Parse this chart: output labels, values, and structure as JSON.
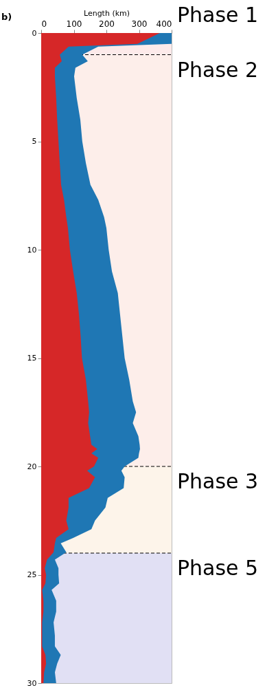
{
  "chart_data": {
    "type": "area",
    "orientation": "horizontal",
    "title": "b)",
    "xlabel": "Length (km)",
    "x": [
      0,
      0.5,
      0.63,
      1,
      1.3,
      1.6,
      2,
      3,
      4,
      5,
      6,
      7,
      7.7,
      8.5,
      9,
      10,
      11,
      12,
      13,
      14,
      15,
      16,
      17,
      17.5,
      18,
      18.6,
      19,
      19.2,
      19.4,
      19.6,
      20,
      20.2,
      20.5,
      21,
      21.45,
      21.9,
      22.5,
      22.9,
      23.3,
      23.55,
      23.96,
      24.3,
      24.7,
      25,
      25.4,
      25.7,
      26.2,
      26.7,
      27.2,
      27.8,
      28.3,
      28.7,
      29.1,
      29.5,
      30
    ],
    "series": [
      {
        "color": "#1f77b4",
        "values": [
          400,
          400,
          175,
          126,
          143,
          105,
          101,
          109,
          120,
          126,
          137,
          151,
          175,
          193,
          200,
          207,
          217,
          235,
          242,
          249,
          256,
          270,
          281,
          291,
          281,
          298,
          302,
          303,
          300,
          298,
          256,
          246,
          256,
          253,
          204,
          197,
          165,
          154,
          98,
          60,
          77,
          42,
          53,
          53,
          55,
          32,
          46,
          46,
          38,
          42,
          42,
          60,
          49,
          42,
          46
        ]
      },
      {
        "color": "#d62728",
        "values": [
          364,
          295,
          84,
          57,
          63,
          42,
          42,
          46,
          49,
          53,
          57,
          61,
          70,
          77,
          82,
          88,
          98,
          109,
          116,
          121,
          125,
          137,
          144,
          147,
          144,
          150,
          154,
          172,
          154,
          175,
          162,
          141,
          165,
          147,
          84,
          84,
          77,
          84,
          46,
          42,
          38,
          18,
          11,
          15,
          13,
          3,
          7,
          7,
          3,
          3,
          3,
          13,
          15,
          9,
          7
        ]
      }
    ],
    "xlim": [
      0,
      400
    ],
    "xticks": [
      0,
      100,
      200,
      300,
      400
    ],
    "ylim": [
      30,
      0
    ],
    "yticks": [
      0,
      5,
      10,
      15,
      20,
      25,
      30
    ],
    "grid": true,
    "bands": [
      {
        "axis": "y",
        "from": 0,
        "to": 1,
        "label": "Phase 1",
        "color": "#fdeaea"
      },
      {
        "axis": "y",
        "from": 1,
        "to": 20,
        "label": "Phase 2",
        "color": "#fdeeea"
      },
      {
        "axis": "y",
        "from": 20,
        "to": 24,
        "label": "Phase 3",
        "color": "#fdf4ea"
      },
      {
        "axis": "y",
        "from": 24,
        "to": 30,
        "label": "Phase 5",
        "color": "#e1e0f4"
      }
    ],
    "ref_lines": [
      {
        "axis": "y",
        "value": 1,
        "color": "#000000",
        "line_style": "dashed"
      },
      {
        "axis": "y",
        "value": 20,
        "color": "#000000",
        "line_style": "dashed"
      },
      {
        "axis": "y",
        "value": 24,
        "color": "#000000",
        "line_style": "dashed"
      }
    ]
  }
}
